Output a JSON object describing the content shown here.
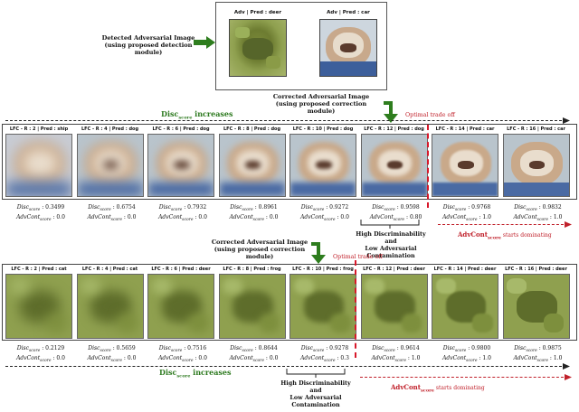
{
  "detection": {
    "caption_line1": "Detected Adversarial Image",
    "caption_line2": "(using proposed detection module)",
    "images": [
      {
        "label": "Adv | Pred : deer"
      },
      {
        "label": "Adv | Pred : car"
      }
    ]
  },
  "dog_row": {
    "caption_line1": "Corrected Adversarial Image",
    "caption_line2": "(using proposed correction module)",
    "disc_label": "Disc",
    "disc_sub": "score",
    "disc_suffix": " increases",
    "optimal": "Optimal trade off",
    "tiles": [
      {
        "label": "LFC - R : 2 | Pred : ship",
        "disc": ": 0.3499",
        "adv": ": 0.0"
      },
      {
        "label": "LFC - R : 4 | Pred : dog",
        "disc": ": 0.6754",
        "adv": ": 0.0"
      },
      {
        "label": "LFC - R : 6 | Pred : dog",
        "disc": ": 0.7932",
        "adv": ": 0.0"
      },
      {
        "label": "LFC - R : 8 | Pred : dog",
        "disc": ": 0.8961",
        "adv": ": 0.0"
      },
      {
        "label": "LFC - R : 10 | Pred : dog",
        "disc": ": 0.9272",
        "adv": ": 0.0"
      },
      {
        "label": "LFC - R : 12 | Pred : dog",
        "disc": ": 0.9598",
        "adv": ": 0.80"
      },
      {
        "label": "LFC - R : 14 | Pred : car",
        "disc": ": 0.9768",
        "adv": ": 1.0"
      },
      {
        "label": "LFC - R : 16 | Pred : car",
        "disc": ": 0.9832",
        "adv": ": 1.0"
      }
    ],
    "note_line1": "High Discriminability and",
    "note_line2": "Low Adversarial",
    "note_line3": "Contamination",
    "adv_label": "AdvCont",
    "adv_sub": "score",
    "adv_suffix": " starts dominating"
  },
  "frog_row": {
    "caption_line1": "Corrected Adversarial Image",
    "caption_line2": "(using proposed correction module)",
    "optimal": "Optimal trade off",
    "tiles": [
      {
        "label": "LFC - R : 2 | Pred : cat",
        "disc": ": 0.2129",
        "adv": ": 0.0"
      },
      {
        "label": "LFC - R : 4 | Pred : cat",
        "disc": ": 0.5659",
        "adv": ": 0.0"
      },
      {
        "label": "LFC - R : 6 | Pred : deer",
        "disc": ": 0.7516",
        "adv": ": 0.0"
      },
      {
        "label": "LFC - R : 8 | Pred : frog",
        "disc": ": 0.8644",
        "adv": ": 0.0"
      },
      {
        "label": "LFC - R : 10 | Pred : frog",
        "disc": ": 0.9278",
        "adv": ": 0.3"
      },
      {
        "label": "LFC - R : 12 | Pred : deer",
        "disc": ": 0.9614",
        "adv": ": 1.0"
      },
      {
        "label": "LFC - R : 14 | Pred : deer",
        "disc": ": 0.9800",
        "adv": ": 1.0"
      },
      {
        "label": "LFC - R : 16 | Pred : deer",
        "disc": ": 0.9875",
        "adv": ": 1.0"
      }
    ],
    "disc_label": "Disc",
    "disc_sub": "score",
    "disc_suffix": " increases",
    "note_line1": "High Discriminability",
    "note_line2": "and",
    "note_line3": "Low Adversarial",
    "note_line4": "Contamination",
    "adv_label": "AdvCont",
    "adv_sub": "score",
    "adv_suffix": " starts dominating"
  },
  "score_terms": {
    "disc": "Disc",
    "adv": "AdvCont",
    "sub": "score"
  },
  "colors": {
    "green": "#2d7a1f",
    "red": "#c0202a",
    "arrow_green": "#2e7d1e"
  }
}
